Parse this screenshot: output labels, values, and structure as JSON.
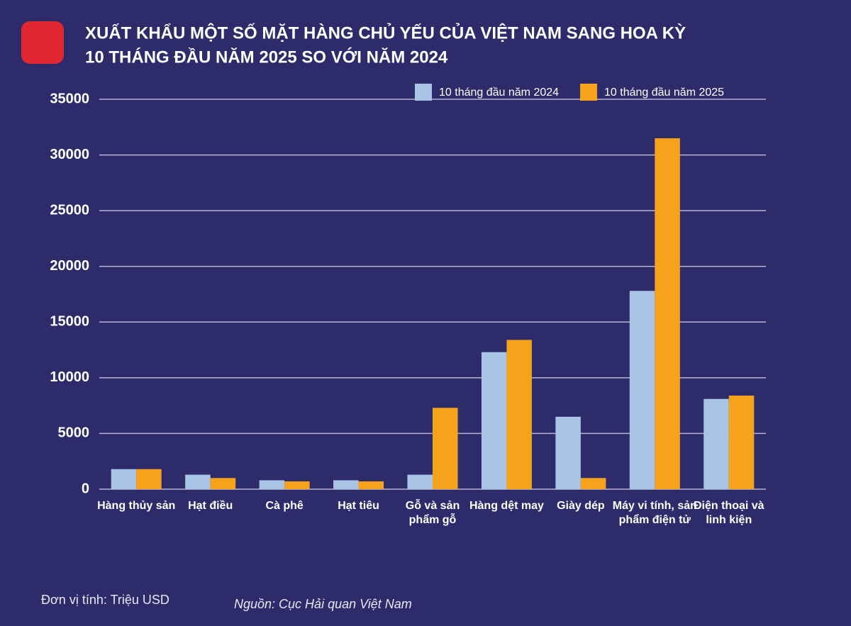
{
  "chart_data": {
    "type": "bar",
    "title": "XUẤT KHẨU MỘT SỐ MẶT HÀNG CHỦ YẾU CỦA VIỆT NAM SANG HOA KỲ",
    "subtitle": "10 THÁNG ĐẦU NĂM 2025 SO VỚI NĂM 2024",
    "categories": [
      "Hàng thủy sản",
      "Hạt điều",
      "Cà phê",
      "Hạt tiêu",
      "Gỗ và sản phẩm gỗ",
      "Hàng dệt may",
      "Giày dép",
      "Máy vi tính, sản phẩm điện tử",
      "Điện thoại và linh kiện"
    ],
    "series": [
      {
        "name": "10 tháng đầu năm 2024",
        "color": "#aac4e6",
        "values": [
          1800,
          1300,
          800,
          800,
          1300,
          12300,
          6500,
          17800,
          8100
        ]
      },
      {
        "name": "10 tháng đầu năm 2025",
        "color": "#f7a21b",
        "values": [
          1800,
          1000,
          700,
          700,
          7300,
          13400,
          1000,
          31500,
          8400
        ]
      }
    ],
    "ylim": [
      0,
      35000
    ],
    "yticks": [
      0,
      5000,
      10000,
      15000,
      20000,
      25000,
      30000,
      35000
    ],
    "grid": true,
    "legend": "top-right",
    "unit_note": "Đơn vị tính: Triệu USD",
    "source": "Nguồn: Cục Hải quan Việt Nam"
  }
}
